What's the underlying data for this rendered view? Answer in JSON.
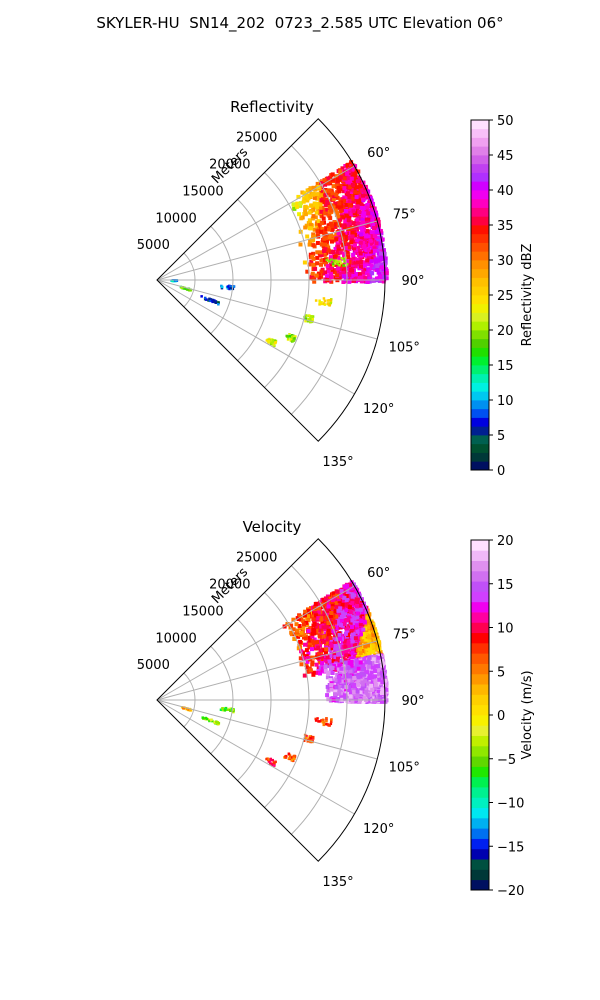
{
  "figure_title": "SKYLER-HU  SN14_202  0723_2.585 UTC Elevation 06°",
  "colors": {
    "grid": "#b0b0b0",
    "frame": "#000000"
  },
  "chart_data": [
    {
      "type": "heatmap",
      "projection": "polar-sector",
      "title": "Reflectivity",
      "range_label": "Meters",
      "azimuth_range_deg": [
        45,
        135
      ],
      "azimuth_ticks": [
        "60°",
        "75°",
        "90°",
        "105°",
        "120°",
        "135°"
      ],
      "range_ticks": [
        "5000",
        "10000",
        "15000",
        "20000",
        "25000"
      ],
      "range_max_m": 30000,
      "grid": true,
      "colorbar": {
        "label": "Reflectivity dBZ",
        "vmin": 0,
        "vmax": 50,
        "ticks": [
          "0",
          "5",
          "10",
          "15",
          "20",
          "25",
          "30",
          "35",
          "40",
          "45",
          "50"
        ],
        "colors": [
          "#001060",
          "#003838",
          "#005030",
          "#006050",
          "#002090",
          "#0000e0",
          "#0050f0",
          "#0090f0",
          "#00c8f0",
          "#00f0e0",
          "#00f0b0",
          "#00f070",
          "#00f030",
          "#20e000",
          "#50d000",
          "#80e000",
          "#b0f000",
          "#d8f020",
          "#f0f000",
          "#ffe000",
          "#ffd000",
          "#ffc000",
          "#ffa800",
          "#ff9000",
          "#ff7000",
          "#ff5000",
          "#ff3000",
          "#ff1000",
          "#ff0040",
          "#ff0080",
          "#ff00c0",
          "#f000f0",
          "#d000ff",
          "#b030ff",
          "#c040f0",
          "#d060e8",
          "#e080e8",
          "#f0a0f0",
          "#f8c0f8",
          "#ffe0ff"
        ]
      },
      "series": [
        {
          "kind": "storm",
          "az_from": 58,
          "az_to": 90,
          "r_from_m": 19000,
          "r_to_m": 30000,
          "values_dbz": [
            22,
            28,
            33,
            36,
            38,
            41
          ]
        },
        {
          "kind": "echo",
          "az_center": 84,
          "r_from_m": 22000,
          "r_to_m": 25000,
          "value_dbz": 20
        },
        {
          "kind": "echo",
          "az_center": 97,
          "r_from_m": 20500,
          "r_to_m": 23000,
          "value_dbz": 24
        },
        {
          "kind": "echo",
          "az_center": 104,
          "r_from_m": 19500,
          "r_to_m": 21000,
          "value_dbz": 21
        },
        {
          "kind": "echo",
          "az_center": 113,
          "r_from_m": 18000,
          "r_to_m": 19500,
          "value_dbz": 20
        },
        {
          "kind": "echo",
          "az_center": 118,
          "r_from_m": 16000,
          "r_to_m": 17500,
          "value_dbz": 22
        },
        {
          "kind": "echo",
          "az_center": 95,
          "r_from_m": 8000,
          "r_to_m": 10000,
          "value_dbz": 8
        },
        {
          "kind": "echo",
          "az_center": 110,
          "r_from_m": 5500,
          "r_to_m": 8500,
          "value_dbz": 6
        },
        {
          "kind": "echo",
          "az_center": 105,
          "r_from_m": 3000,
          "r_to_m": 4500,
          "value_dbz": 18
        },
        {
          "kind": "echo",
          "az_center": 88,
          "r_from_m": 1500,
          "r_to_m": 2500,
          "value_dbz": 10
        }
      ]
    },
    {
      "type": "heatmap",
      "projection": "polar-sector",
      "title": "Velocity",
      "range_label": "Meters",
      "azimuth_range_deg": [
        45,
        135
      ],
      "azimuth_ticks": [
        "60°",
        "75°",
        "90°",
        "105°",
        "120°",
        "135°"
      ],
      "range_ticks": [
        "5000",
        "10000",
        "15000",
        "20000",
        "25000"
      ],
      "range_max_m": 30000,
      "grid": true,
      "colorbar": {
        "label": "Velocity (m/s)",
        "vmin": -20,
        "vmax": 20,
        "ticks": [
          "−20",
          "−15",
          "−10",
          "−5",
          "0",
          "5",
          "10",
          "15",
          "20"
        ],
        "colors": [
          "#001060",
          "#003838",
          "#005040",
          "#0000b0",
          "#0020f0",
          "#0070f0",
          "#00b0f0",
          "#00e8f0",
          "#00f0c0",
          "#00f090",
          "#00f050",
          "#20e800",
          "#60d800",
          "#90e800",
          "#c0f000",
          "#e8f030",
          "#f8f000",
          "#ffe000",
          "#ffd000",
          "#ffb800",
          "#ff9800",
          "#ff7800",
          "#ff5800",
          "#ff3000",
          "#ff0000",
          "#ff0050",
          "#ff00a0",
          "#f000f0",
          "#d040ff",
          "#c050f8",
          "#d070f0",
          "#e090f0",
          "#f0b8f8",
          "#ffe0ff"
        ]
      },
      "series": [
        {
          "kind": "storm-approaching",
          "az_from": 58,
          "az_to": 80,
          "r_from_m": 19000,
          "r_to_m": 30000,
          "values_ms": [
            6,
            9,
            12,
            3
          ]
        },
        {
          "kind": "storm-receding",
          "az_from": 78,
          "az_to": 90,
          "r_from_m": 22000,
          "r_to_m": 30000,
          "values_ms": [
            15,
            16
          ]
        },
        {
          "kind": "echo",
          "az_center": 97,
          "r_from_m": 20500,
          "r_to_m": 23000,
          "value_ms": 7
        },
        {
          "kind": "echo",
          "az_center": 104,
          "r_from_m": 19500,
          "r_to_m": 21000,
          "value_ms": 7
        },
        {
          "kind": "echo",
          "az_center": 113,
          "r_from_m": 18000,
          "r_to_m": 19500,
          "value_ms": 7
        },
        {
          "kind": "echo",
          "az_center": 118,
          "r_from_m": 16000,
          "r_to_m": 17500,
          "value_ms": 8
        },
        {
          "kind": "echo",
          "az_center": 97,
          "r_from_m": 8000,
          "r_to_m": 10000,
          "value_ms": -5
        },
        {
          "kind": "echo",
          "az_center": 110,
          "r_from_m": 5500,
          "r_to_m": 8500,
          "value_ms": -4
        },
        {
          "kind": "echo",
          "az_center": 105,
          "r_from_m": 3000,
          "r_to_m": 4500,
          "value_ms": 3
        }
      ]
    }
  ]
}
